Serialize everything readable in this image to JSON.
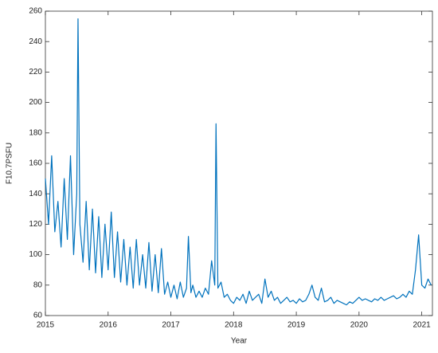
{
  "chart_data": {
    "type": "line",
    "xlabel": "Year",
    "ylabel": "F10.7PSFU",
    "x": [
      2015.0,
      2015.05,
      2015.1,
      2015.15,
      2015.2,
      2015.25,
      2015.3,
      2015.35,
      2015.4,
      2015.45,
      2015.5,
      2015.52,
      2015.55,
      2015.6,
      2015.65,
      2015.7,
      2015.75,
      2015.8,
      2015.85,
      2015.9,
      2015.95,
      2016.0,
      2016.05,
      2016.1,
      2016.15,
      2016.2,
      2016.25,
      2016.3,
      2016.35,
      2016.4,
      2016.45,
      2016.5,
      2016.55,
      2016.6,
      2016.65,
      2016.7,
      2016.75,
      2016.8,
      2016.85,
      2016.9,
      2016.95,
      2017.0,
      2017.05,
      2017.1,
      2017.15,
      2017.2,
      2017.25,
      2017.28,
      2017.32,
      2017.35,
      2017.4,
      2017.45,
      2017.5,
      2017.55,
      2017.6,
      2017.65,
      2017.7,
      2017.72,
      2017.75,
      2017.8,
      2017.85,
      2017.9,
      2017.95,
      2018.0,
      2018.05,
      2018.1,
      2018.15,
      2018.2,
      2018.25,
      2018.3,
      2018.35,
      2018.4,
      2018.45,
      2018.5,
      2018.55,
      2018.6,
      2018.65,
      2018.7,
      2018.75,
      2018.8,
      2018.85,
      2018.9,
      2018.95,
      2019.0,
      2019.05,
      2019.1,
      2019.15,
      2019.2,
      2019.25,
      2019.3,
      2019.35,
      2019.4,
      2019.45,
      2019.5,
      2019.55,
      2019.6,
      2019.65,
      2019.7,
      2019.75,
      2019.8,
      2019.85,
      2019.9,
      2019.95,
      2020.0,
      2020.05,
      2020.1,
      2020.15,
      2020.2,
      2020.25,
      2020.3,
      2020.35,
      2020.4,
      2020.45,
      2020.5,
      2020.55,
      2020.6,
      2020.65,
      2020.7,
      2020.75,
      2020.8,
      2020.85,
      2020.9,
      2020.95,
      2021.0,
      2021.05,
      2021.1,
      2021.15
    ],
    "series": [
      {
        "name": "F10.7",
        "color": "#0072bd",
        "values": [
          150,
          120,
          165,
          115,
          135,
          105,
          150,
          110,
          165,
          100,
          140,
          255,
          120,
          95,
          135,
          90,
          130,
          88,
          125,
          85,
          120,
          90,
          128,
          85,
          115,
          82,
          110,
          80,
          105,
          78,
          110,
          80,
          100,
          78,
          108,
          76,
          100,
          75,
          104,
          74,
          82,
          72,
          80,
          71,
          82,
          72,
          78,
          112,
          75,
          80,
          72,
          76,
          72,
          78,
          74,
          96,
          80,
          186,
          78,
          82,
          72,
          74,
          70,
          68,
          72,
          70,
          74,
          68,
          76,
          70,
          72,
          74,
          68,
          84,
          72,
          76,
          70,
          72,
          68,
          70,
          72,
          69,
          70,
          68,
          71,
          69,
          70,
          74,
          80,
          72,
          70,
          78,
          69,
          70,
          72,
          68,
          70,
          69,
          68,
          67,
          69,
          68,
          70,
          72,
          70,
          71,
          70,
          69,
          71,
          70,
          72,
          70,
          71,
          72,
          73,
          71,
          72,
          74,
          72,
          76,
          74,
          90,
          113,
          80,
          78,
          84,
          80
        ]
      }
    ],
    "xlim": [
      2015,
      2021.17
    ],
    "ylim": [
      60,
      260
    ],
    "xticks": [
      2015,
      2016,
      2017,
      2018,
      2019,
      2020,
      2021
    ],
    "yticks": [
      60,
      80,
      100,
      120,
      140,
      160,
      180,
      200,
      220,
      240,
      260
    ]
  }
}
